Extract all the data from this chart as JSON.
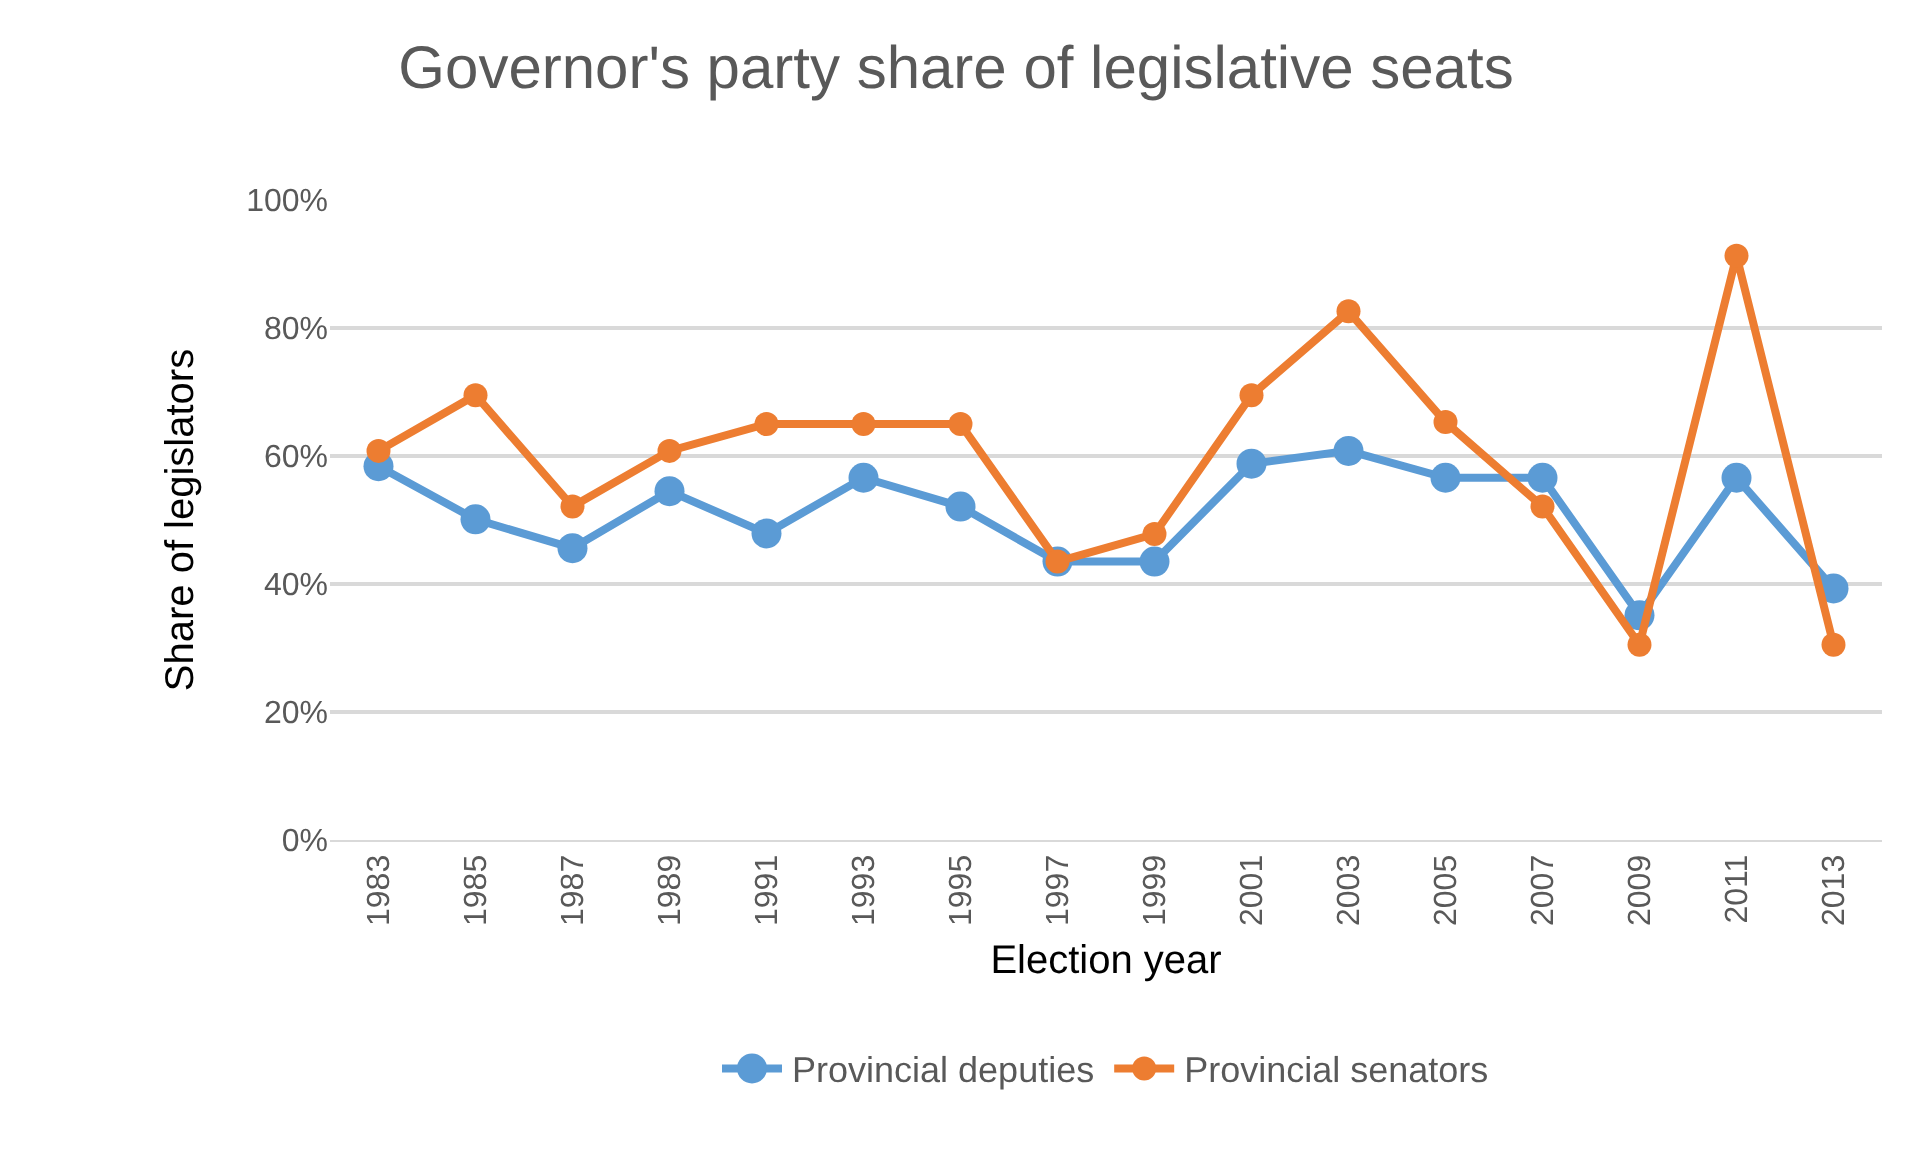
{
  "chart_data": {
    "type": "line",
    "title": "Governor's party share of legislative seats",
    "xlabel": "Election year",
    "ylabel": "Share of legislators",
    "categories": [
      "1983",
      "1985",
      "1987",
      "1989",
      "1991",
      "1993",
      "1995",
      "1997",
      "1999",
      "2001",
      "2003",
      "2005",
      "2007",
      "2009",
      "2011",
      "2013"
    ],
    "series": [
      {
        "name": "Provincial deputies",
        "color": "#5b9bd5",
        "values": [
          58.4,
          50.1,
          45.6,
          54.5,
          47.9,
          56.6,
          52.1,
          43.5,
          43.5,
          58.8,
          60.8,
          56.6,
          56.6,
          35.1,
          56.6,
          39.3
        ]
      },
      {
        "name": "Provincial senators",
        "color": "#ed7d31",
        "values": [
          60.8,
          69.5,
          52.1,
          60.8,
          65.0,
          65.0,
          65.0,
          43.5,
          47.8,
          69.5,
          82.6,
          65.3,
          52.1,
          30.5,
          91.3,
          30.5
        ]
      }
    ],
    "ylim": [
      0,
      100
    ],
    "yticks": [
      {
        "value": 0,
        "label": "0%"
      },
      {
        "value": 20,
        "label": "20%"
      },
      {
        "value": 40,
        "label": "40%"
      },
      {
        "value": 60,
        "label": "60%"
      },
      {
        "value": 80,
        "label": "80%"
      },
      {
        "value": 100,
        "label": "100%"
      }
    ],
    "grid": "y",
    "legend": "bottom",
    "marker": "circle",
    "line_style": "solid"
  }
}
